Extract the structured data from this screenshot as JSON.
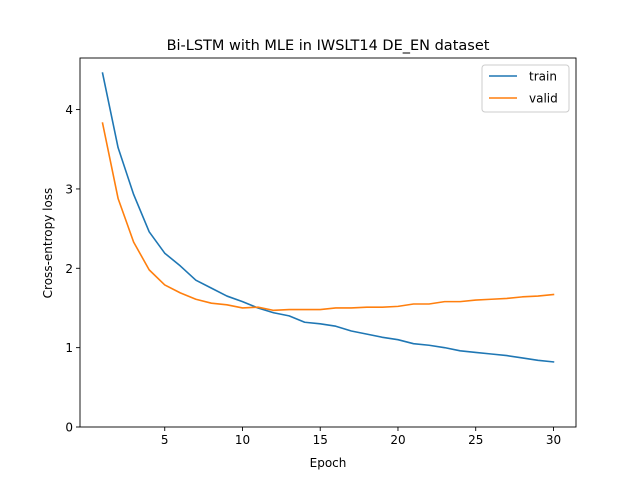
{
  "chart_data": {
    "type": "line",
    "title": "Bi-LSTM with MLE in IWSLT14 DE_EN dataset",
    "xlabel": "Epoch",
    "ylabel": "Cross-entropy loss",
    "xlim": [
      -0.45,
      31.45
    ],
    "ylim": [
      0,
      4.65
    ],
    "xticks": [
      5,
      10,
      15,
      20,
      25,
      30
    ],
    "yticks": [
      0,
      1,
      2,
      3,
      4
    ],
    "grid": false,
    "legend": "top-right",
    "x": [
      1,
      2,
      3,
      4,
      5,
      6,
      7,
      8,
      9,
      10,
      11,
      12,
      13,
      14,
      15,
      16,
      17,
      18,
      19,
      20,
      21,
      22,
      23,
      24,
      25,
      26,
      27,
      28,
      29,
      30
    ],
    "series": [
      {
        "name": "train",
        "color": "#1f77b4",
        "values": [
          4.46,
          3.52,
          2.93,
          2.46,
          2.19,
          2.03,
          1.85,
          1.75,
          1.65,
          1.58,
          1.5,
          1.44,
          1.4,
          1.32,
          1.3,
          1.27,
          1.21,
          1.17,
          1.13,
          1.1,
          1.05,
          1.03,
          1.0,
          0.96,
          0.94,
          0.92,
          0.9,
          0.87,
          0.84,
          0.82
        ]
      },
      {
        "name": "valid",
        "color": "#ff7f0e",
        "values": [
          3.83,
          2.88,
          2.33,
          1.98,
          1.79,
          1.69,
          1.61,
          1.56,
          1.54,
          1.5,
          1.51,
          1.47,
          1.48,
          1.48,
          1.48,
          1.5,
          1.5,
          1.51,
          1.51,
          1.52,
          1.55,
          1.55,
          1.58,
          1.58,
          1.6,
          1.61,
          1.62,
          1.64,
          1.65,
          1.67
        ]
      }
    ]
  }
}
